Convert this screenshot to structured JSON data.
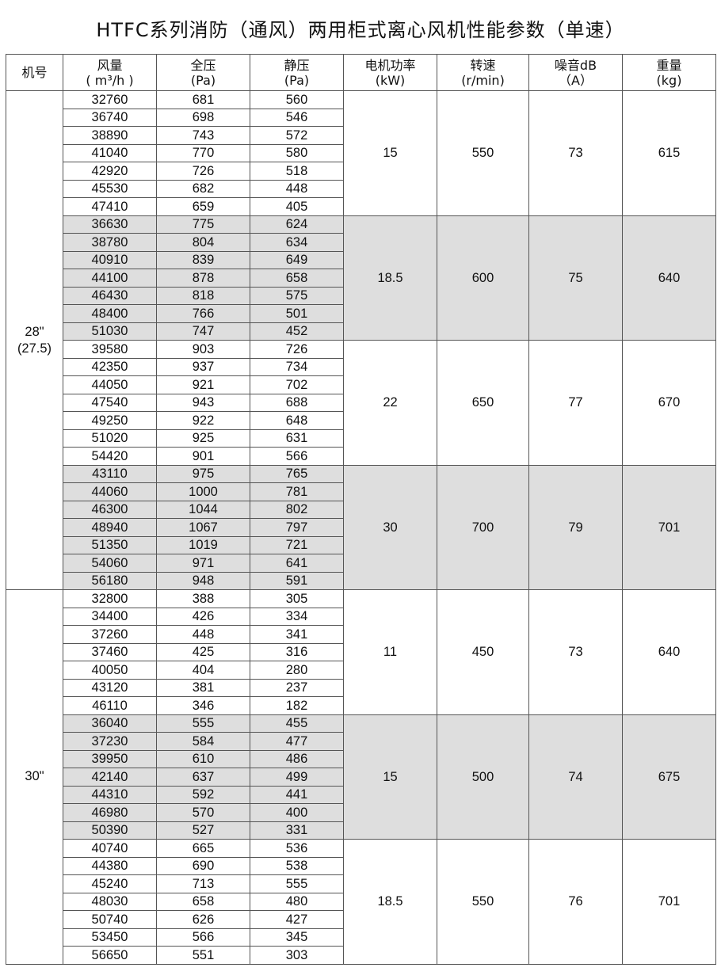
{
  "title": "HTFC系列消防（通风）两用柜式离心风机性能参数（单速）",
  "headers": [
    {
      "l1": "机号",
      "l2": ""
    },
    {
      "l1": "风量",
      "l2": "( m³/h )"
    },
    {
      "l1": "全压",
      "l2": "(Pa)"
    },
    {
      "l1": "静压",
      "l2": "(Pa)"
    },
    {
      "l1": "电机功率",
      "l2": "(kW)"
    },
    {
      "l1": "转速",
      "l2": "(r/min)"
    },
    {
      "l1": "噪音dB",
      "l2": "（A）"
    },
    {
      "l1": "重量",
      "l2": "(kg)"
    }
  ],
  "shade_color": "#dedede",
  "models": [
    {
      "model": "28\"",
      "model_sub": "(27.5)",
      "groups": [
        {
          "power": "15",
          "speed": "550",
          "noise": "73",
          "weight": "615",
          "shaded": false,
          "rows": [
            [
              "32760",
              "681",
              "560"
            ],
            [
              "36740",
              "698",
              "546"
            ],
            [
              "38890",
              "743",
              "572"
            ],
            [
              "41040",
              "770",
              "580"
            ],
            [
              "42920",
              "726",
              "518"
            ],
            [
              "45530",
              "682",
              "448"
            ],
            [
              "47410",
              "659",
              "405"
            ]
          ]
        },
        {
          "power": "18.5",
          "speed": "600",
          "noise": "75",
          "weight": "640",
          "shaded": true,
          "rows": [
            [
              "36630",
              "775",
              "624"
            ],
            [
              "38780",
              "804",
              "634"
            ],
            [
              "40910",
              "839",
              "649"
            ],
            [
              "44100",
              "878",
              "658"
            ],
            [
              "46430",
              "818",
              "575"
            ],
            [
              "48400",
              "766",
              "501"
            ],
            [
              "51030",
              "747",
              "452"
            ]
          ]
        },
        {
          "power": "22",
          "speed": "650",
          "noise": "77",
          "weight": "670",
          "shaded": false,
          "rows": [
            [
              "39580",
              "903",
              "726"
            ],
            [
              "42350",
              "937",
              "734"
            ],
            [
              "44050",
              "921",
              "702"
            ],
            [
              "47540",
              "943",
              "688"
            ],
            [
              "49250",
              "922",
              "648"
            ],
            [
              "51020",
              "925",
              "631"
            ],
            [
              "54420",
              "901",
              "566"
            ]
          ]
        },
        {
          "power": "30",
          "speed": "700",
          "noise": "79",
          "weight": "701",
          "shaded": true,
          "rows": [
            [
              "43110",
              "975",
              "765"
            ],
            [
              "44060",
              "1000",
              "781"
            ],
            [
              "46300",
              "1044",
              "802"
            ],
            [
              "48940",
              "1067",
              "797"
            ],
            [
              "51350",
              "1019",
              "721"
            ],
            [
              "54060",
              "971",
              "641"
            ],
            [
              "56180",
              "948",
              "591"
            ]
          ]
        }
      ]
    },
    {
      "model": "30\"",
      "model_sub": "",
      "groups": [
        {
          "power": "11",
          "speed": "450",
          "noise": "73",
          "weight": "640",
          "shaded": false,
          "rows": [
            [
              "32800",
              "388",
              "305"
            ],
            [
              "34400",
              "426",
              "334"
            ],
            [
              "37260",
              "448",
              "341"
            ],
            [
              "37460",
              "425",
              "316"
            ],
            [
              "40050",
              "404",
              "280"
            ],
            [
              "43120",
              "381",
              "237"
            ],
            [
              "46110",
              "346",
              "182"
            ]
          ]
        },
        {
          "power": "15",
          "speed": "500",
          "noise": "74",
          "weight": "675",
          "shaded": true,
          "rows": [
            [
              "36040",
              "555",
              "455"
            ],
            [
              "37230",
              "584",
              "477"
            ],
            [
              "39950",
              "610",
              "486"
            ],
            [
              "42140",
              "637",
              "499"
            ],
            [
              "44310",
              "592",
              "441"
            ],
            [
              "46980",
              "570",
              "400"
            ],
            [
              "50390",
              "527",
              "331"
            ]
          ]
        },
        {
          "power": "18.5",
          "speed": "550",
          "noise": "76",
          "weight": "701",
          "shaded": false,
          "rows": [
            [
              "40740",
              "665",
              "536"
            ],
            [
              "44380",
              "690",
              "538"
            ],
            [
              "45240",
              "713",
              "555"
            ],
            [
              "48030",
              "658",
              "480"
            ],
            [
              "50740",
              "626",
              "427"
            ],
            [
              "53450",
              "566",
              "345"
            ],
            [
              "56650",
              "551",
              "303"
            ]
          ]
        }
      ]
    }
  ]
}
